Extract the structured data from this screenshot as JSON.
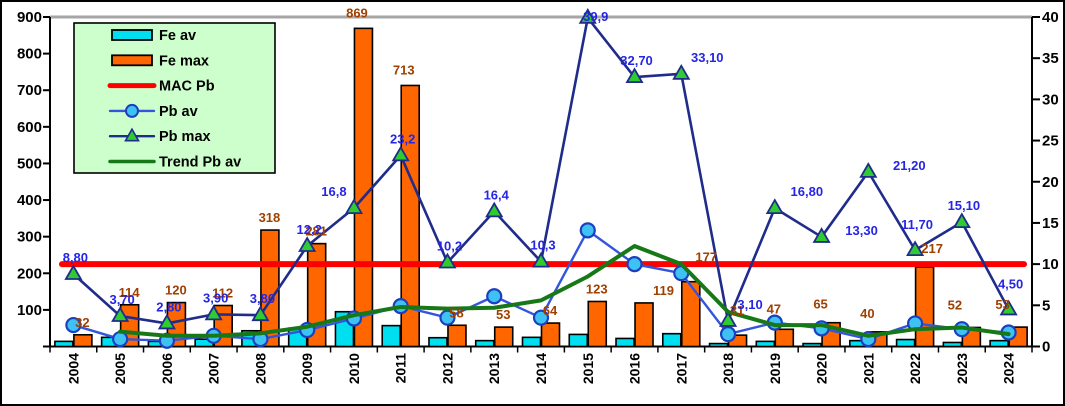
{
  "chart_data": {
    "type": "combo-bar-line",
    "categories": [
      "2004",
      "2005",
      "2006",
      "2007",
      "2008",
      "2009",
      "2010",
      "2011",
      "2012",
      "2013",
      "2014",
      "2015",
      "2016",
      "2017",
      "2018",
      "2019",
      "2020",
      "2021",
      "2022",
      "2023",
      "2024"
    ],
    "left_axis": {
      "min": 0,
      "max": 900,
      "tick_step": 100,
      "tick_labels": [
        "900",
        "800",
        "700",
        "600",
        "500",
        "400",
        "300",
        "200",
        "100"
      ]
    },
    "right_axis": {
      "min": 0,
      "max": 40,
      "tick_step": 5,
      "tick_labels": [
        "40",
        "35",
        "30",
        "25",
        "20",
        "15",
        "10",
        "5",
        "0"
      ]
    },
    "grid": false,
    "series": [
      {
        "name": "Fe av",
        "type": "bar",
        "axis": "left",
        "color": "#00dff0",
        "values": [
          14,
          25,
          14,
          20,
          43,
          50,
          95,
          57,
          24,
          16,
          25,
          33,
          22,
          35,
          8,
          14,
          8,
          16,
          19,
          11,
          16
        ]
      },
      {
        "name": "Fe max",
        "type": "bar",
        "axis": "left",
        "color": "#ff6600",
        "label_color": "#a04000",
        "values": [
          32,
          114,
          120,
          112,
          318,
          281,
          869,
          713,
          58,
          53,
          64,
          123,
          119,
          177,
          31,
          47,
          65,
          40,
          217,
          52,
          53
        ],
        "labels": [
          "32",
          "114",
          "120",
          "112",
          "318",
          "281",
          "869",
          "713",
          "58",
          "53",
          "64",
          "123",
          "119",
          "177",
          "31",
          "47",
          "65",
          "40",
          "217",
          "52",
          "53"
        ]
      },
      {
        "name": "MAC Pb",
        "type": "hline",
        "axis": "right",
        "color": "#ff0000",
        "value": 10
      },
      {
        "name": "Pb av",
        "type": "line",
        "axis": "right",
        "color": "#3355dd",
        "marker": "circle",
        "marker_fill": "#3ec1f3",
        "marker_stroke": "#1b3fbf",
        "values": [
          2.6,
          0.9,
          0.7,
          1.3,
          0.9,
          2.0,
          3.4,
          4.9,
          3.5,
          6.1,
          3.5,
          14.1,
          10.0,
          8.9,
          1.5,
          2.9,
          2.2,
          0.9,
          2.8,
          2.1,
          1.7
        ]
      },
      {
        "name": "Pb max",
        "type": "line",
        "axis": "right",
        "color": "#1f2c8c",
        "label_color": "#2525e6",
        "marker": "triangle",
        "marker_fill": "#2fcc2f",
        "marker_stroke": "#1f2c8c",
        "values": [
          8.8,
          3.7,
          2.8,
          3.9,
          3.8,
          12.2,
          16.8,
          23.2,
          10.2,
          16.4,
          10.3,
          39.9,
          32.7,
          33.1,
          3.1,
          16.8,
          13.3,
          21.2,
          11.7,
          15.1,
          4.5
        ],
        "labels": [
          "8,80",
          "3,70",
          "2,80",
          "3,90",
          "3,80",
          "12,2",
          "16,8",
          "23,2",
          "10,2",
          "16,4",
          "10,3",
          "39,9",
          "32,70",
          "33,10",
          "3,10",
          "16,80",
          "13,30",
          "21,20",
          "11,70",
          "15,10",
          "4,50"
        ]
      },
      {
        "name": "Trend Pb av",
        "type": "line",
        "axis": "right",
        "color": "#177817",
        "values": [
          null,
          1.8,
          1.3,
          1.3,
          1.6,
          2.4,
          3.8,
          4.8,
          4.6,
          4.7,
          5.6,
          8.5,
          12.2,
          10.0,
          4.2,
          2.6,
          2.6,
          1.3,
          2.1,
          2.3,
          1.5
        ]
      }
    ],
    "legend": {
      "position": "top-left",
      "background": "#ccffcc",
      "border_color": "#000000",
      "items": [
        "Fe av",
        "Fe max",
        "MAC Pb",
        "Pb av",
        "Pb max",
        "Trend Pb av"
      ]
    },
    "colors": {
      "plot_top_border": "#a6a6a6",
      "axis": "#000000",
      "background": "#ffffff"
    }
  }
}
